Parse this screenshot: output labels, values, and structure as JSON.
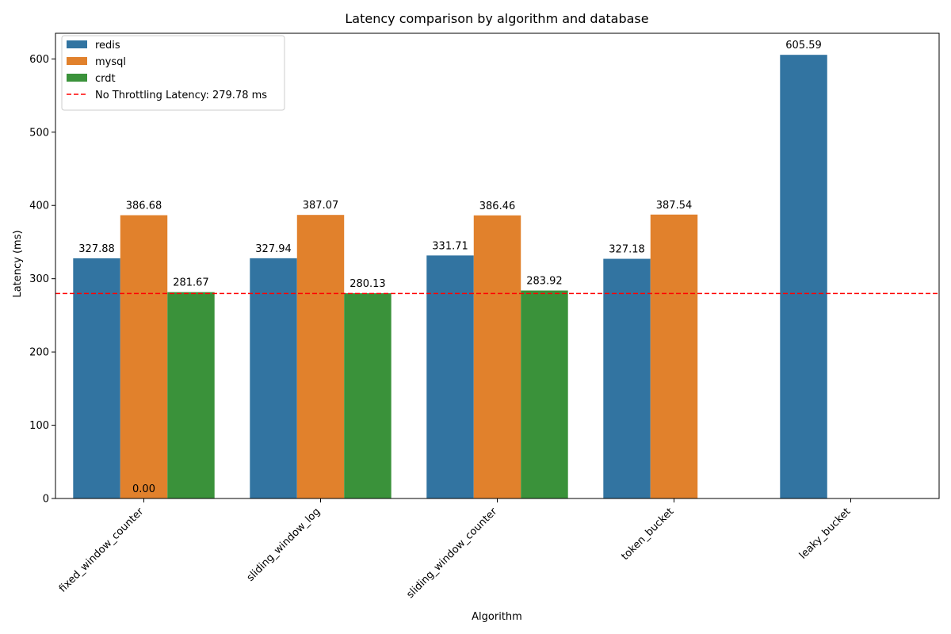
{
  "chart_data": {
    "type": "bar",
    "title": "Latency comparison by algorithm and database",
    "xlabel": "Algorithm",
    "ylabel": "Latency (ms)",
    "ylim": [
      0,
      635
    ],
    "yticks": [
      0,
      100,
      200,
      300,
      400,
      500,
      600
    ],
    "categories": [
      "fixed_window_counter",
      "sliding_window_log",
      "sliding_window_counter",
      "token_bucket",
      "leaky_bucket"
    ],
    "series": [
      {
        "name": "redis",
        "color": "#3274a1",
        "values": [
          327.88,
          327.94,
          331.71,
          327.18,
          605.59
        ],
        "labels": [
          "327.88",
          "327.94",
          "331.71",
          "327.18",
          "605.59"
        ]
      },
      {
        "name": "mysql",
        "color": "#e1812c",
        "values": [
          386.68,
          387.07,
          386.46,
          387.54,
          null
        ],
        "labels": [
          "386.68",
          "387.07",
          "386.46",
          "387.54",
          null
        ]
      },
      {
        "name": "crdt",
        "color": "#3a923a",
        "values": [
          281.67,
          280.13,
          283.92,
          null,
          null
        ],
        "labels": [
          "281.67",
          "280.13",
          "283.92",
          null,
          null
        ]
      }
    ],
    "extra_labels": [
      {
        "category_index": 0,
        "value": 0,
        "text": "0.00"
      }
    ],
    "reference_line": {
      "value": 279.78,
      "label": "No Throttling Latency: 279.78 ms",
      "color": "#ff0000",
      "style": "dashed"
    },
    "legend": {
      "placement": "top-left"
    },
    "grid": false
  }
}
